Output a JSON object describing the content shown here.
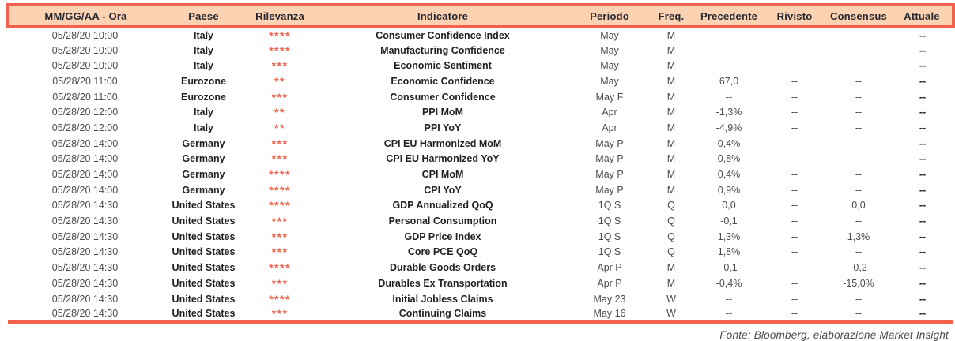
{
  "colors": {
    "accent": "#F2624C",
    "header_bg": "#FBD3B3",
    "header_text": "#26262E",
    "body_text": "#4B4B50",
    "stars": "#F2624C"
  },
  "table": {
    "column_keys": [
      "datetime",
      "country",
      "stars",
      "indicator",
      "period",
      "freq",
      "previous",
      "revised",
      "consensus",
      "actual"
    ],
    "columns": [
      "MM/GG/AA - Ora",
      "Paese",
      "Rilevanza",
      "Indicatore",
      "Periodo",
      "Freq.",
      "Precedente",
      "Rivisto",
      "Consensus",
      "Attuale"
    ],
    "rows": [
      {
        "datetime": "05/28/20 10:00",
        "country": "Italy",
        "stars": 4,
        "indicator": "Consumer Confidence Index",
        "period": "May",
        "freq": "M",
        "previous": "--",
        "revised": "--",
        "consensus": "--",
        "actual": "--"
      },
      {
        "datetime": "05/28/20 10:00",
        "country": "Italy",
        "stars": 4,
        "indicator": "Manufacturing Confidence",
        "period": "May",
        "freq": "M",
        "previous": "--",
        "revised": "--",
        "consensus": "--",
        "actual": "--"
      },
      {
        "datetime": "05/28/20 10:00",
        "country": "Italy",
        "stars": 3,
        "indicator": "Economic Sentiment",
        "period": "May",
        "freq": "M",
        "previous": "--",
        "revised": "--",
        "consensus": "--",
        "actual": "--"
      },
      {
        "datetime": "05/28/20 11:00",
        "country": "Eurozone",
        "stars": 2,
        "indicator": "Economic Confidence",
        "period": "May",
        "freq": "M",
        "previous": "67,0",
        "revised": "--",
        "consensus": "--",
        "actual": "--"
      },
      {
        "datetime": "05/28/20 11:00",
        "country": "Eurozone",
        "stars": 3,
        "indicator": "Consumer Confidence",
        "period": "May F",
        "freq": "M",
        "previous": "--",
        "revised": "--",
        "consensus": "--",
        "actual": "--"
      },
      {
        "datetime": "05/28/20 12:00",
        "country": "Italy",
        "stars": 2,
        "indicator": "PPI MoM",
        "period": "Apr",
        "freq": "M",
        "previous": "-1,3%",
        "revised": "--",
        "consensus": "--",
        "actual": "--"
      },
      {
        "datetime": "05/28/20 12:00",
        "country": "Italy",
        "stars": 2,
        "indicator": "PPI YoY",
        "period": "Apr",
        "freq": "M",
        "previous": "-4,9%",
        "revised": "--",
        "consensus": "--",
        "actual": "--"
      },
      {
        "datetime": "05/28/20 14:00",
        "country": "Germany",
        "stars": 3,
        "indicator": "CPI EU Harmonized MoM",
        "period": "May P",
        "freq": "M",
        "previous": "0,4%",
        "revised": "--",
        "consensus": "--",
        "actual": "--"
      },
      {
        "datetime": "05/28/20 14:00",
        "country": "Germany",
        "stars": 3,
        "indicator": "CPI EU Harmonized YoY",
        "period": "May P",
        "freq": "M",
        "previous": "0,8%",
        "revised": "--",
        "consensus": "--",
        "actual": "--"
      },
      {
        "datetime": "05/28/20 14:00",
        "country": "Germany",
        "stars": 4,
        "indicator": "CPI MoM",
        "period": "May P",
        "freq": "M",
        "previous": "0,4%",
        "revised": "--",
        "consensus": "--",
        "actual": "--"
      },
      {
        "datetime": "05/28/20 14:00",
        "country": "Germany",
        "stars": 4,
        "indicator": "CPI YoY",
        "period": "May P",
        "freq": "M",
        "previous": "0,9%",
        "revised": "--",
        "consensus": "--",
        "actual": "--"
      },
      {
        "datetime": "05/28/20 14:30",
        "country": "United States",
        "stars": 4,
        "indicator": "GDP Annualized QoQ",
        "period": "1Q S",
        "freq": "Q",
        "previous": "0,0",
        "revised": "--",
        "consensus": "0,0",
        "actual": "--"
      },
      {
        "datetime": "05/28/20 14:30",
        "country": "United States",
        "stars": 3,
        "indicator": "Personal Consumption",
        "period": "1Q S",
        "freq": "Q",
        "previous": "-0,1",
        "revised": "--",
        "consensus": "--",
        "actual": "--"
      },
      {
        "datetime": "05/28/20 14:30",
        "country": "United States",
        "stars": 3,
        "indicator": "GDP Price Index",
        "period": "1Q S",
        "freq": "Q",
        "previous": "1,3%",
        "revised": "--",
        "consensus": "1,3%",
        "actual": "--"
      },
      {
        "datetime": "05/28/20 14:30",
        "country": "United States",
        "stars": 3,
        "indicator": "Core PCE QoQ",
        "period": "1Q S",
        "freq": "Q",
        "previous": "1,8%",
        "revised": "--",
        "consensus": "--",
        "actual": "--"
      },
      {
        "datetime": "05/28/20 14:30",
        "country": "United States",
        "stars": 4,
        "indicator": "Durable Goods Orders",
        "period": "Apr P",
        "freq": "M",
        "previous": "-0,1",
        "revised": "--",
        "consensus": "-0,2",
        "actual": "--"
      },
      {
        "datetime": "05/28/20 14:30",
        "country": "United States",
        "stars": 3,
        "indicator": "Durables Ex Transportation",
        "period": "Apr P",
        "freq": "M",
        "previous": "-0,4%",
        "revised": "--",
        "consensus": "-15,0%",
        "actual": "--"
      },
      {
        "datetime": "05/28/20 14:30",
        "country": "United States",
        "stars": 4,
        "indicator": "Initial Jobless Claims",
        "period": "May 23",
        "freq": "W",
        "previous": "--",
        "revised": "--",
        "consensus": "--",
        "actual": "--"
      },
      {
        "datetime": "05/28/20 14:30",
        "country": "United States",
        "stars": 3,
        "indicator": "Continuing Claims",
        "period": "May 16",
        "freq": "W",
        "previous": "--",
        "revised": "--",
        "consensus": "--",
        "actual": "--"
      }
    ]
  },
  "footer": {
    "source": "Fonte: Bloomberg, elaborazione Market Insight"
  }
}
